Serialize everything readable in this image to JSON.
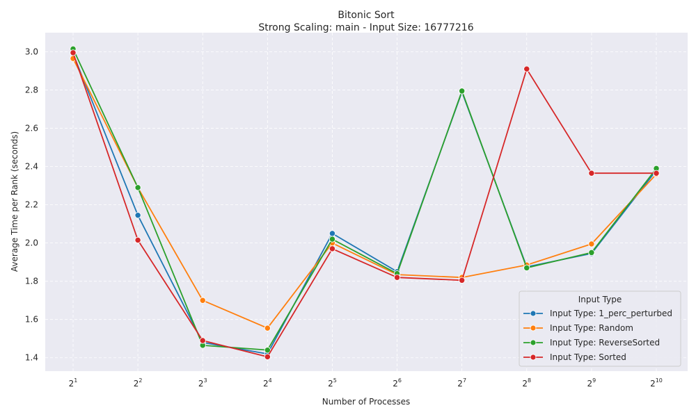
{
  "chart_data": {
    "type": "line",
    "title": "Bitonic Sort",
    "subtitle": "Strong Scaling: main - Input Size: 16777216",
    "xlabel": "Number of Processes",
    "ylabel": "Average Time per Rank (seconds)",
    "x_base": "2",
    "x_exponents": [
      "1",
      "2",
      "3",
      "4",
      "5",
      "6",
      "7",
      "8",
      "9",
      "10"
    ],
    "x": [
      2,
      4,
      8,
      16,
      32,
      64,
      128,
      256,
      512,
      1024
    ],
    "xscale": "log2",
    "ylim": [
      1.33,
      3.1
    ],
    "yticks": [
      1.4,
      1.6,
      1.8,
      2.0,
      2.2,
      2.4,
      2.6,
      2.8,
      3.0
    ],
    "ytick_labels": [
      "1.4",
      "1.6",
      "1.8",
      "2.0",
      "2.2",
      "2.4",
      "2.6",
      "2.8",
      "3.0"
    ],
    "grid": true,
    "legend": {
      "title": "Input Type",
      "placement": "lower-right"
    },
    "series": [
      {
        "name": "Input Type: 1_perc_perturbed",
        "color": "#1f77b4",
        "values": [
          2.99,
          2.145,
          1.48,
          1.42,
          2.05,
          1.85,
          2.79,
          1.875,
          1.945,
          2.38
        ]
      },
      {
        "name": "Input Type: Random",
        "color": "#ff7f0e",
        "values": [
          2.965,
          2.29,
          1.7,
          1.555,
          2.0,
          1.835,
          1.82,
          1.885,
          1.995,
          2.36
        ]
      },
      {
        "name": "Input Type: ReverseSorted",
        "color": "#2ca02c",
        "values": [
          3.015,
          2.29,
          1.465,
          1.44,
          2.02,
          1.84,
          2.795,
          1.87,
          1.95,
          2.39
        ]
      },
      {
        "name": "Input Type: Sorted",
        "color": "#d62728",
        "values": [
          2.995,
          2.015,
          1.49,
          1.405,
          1.97,
          1.82,
          1.805,
          2.91,
          2.365,
          2.365
        ]
      }
    ]
  }
}
